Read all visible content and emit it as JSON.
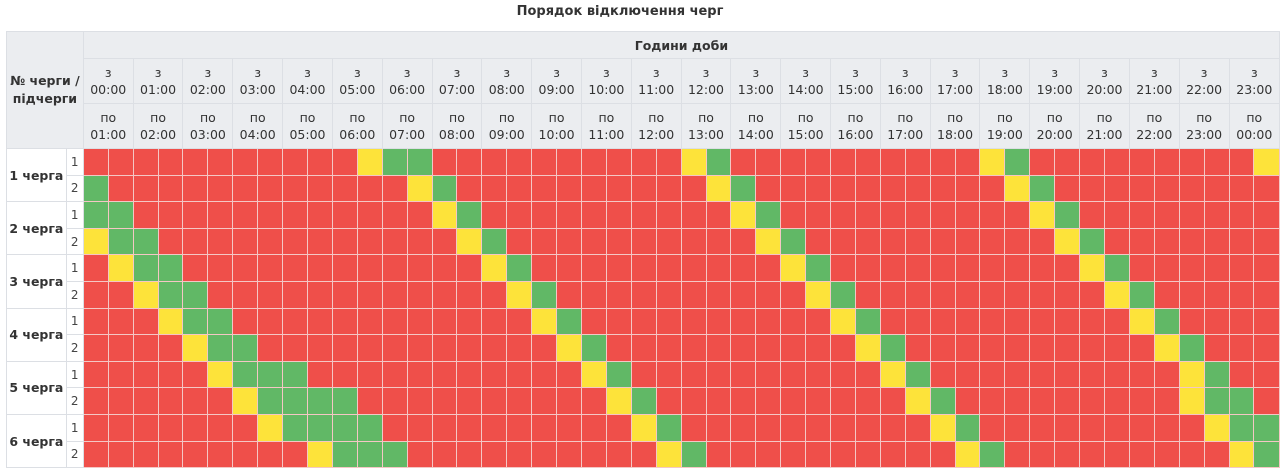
{
  "title": "Порядок відключення черг",
  "header": {
    "corner_label": "№ черги / підчерги",
    "hours_title": "Години доби",
    "from_prefix": "з",
    "to_prefix": "по",
    "from_times": [
      "00:00",
      "01:00",
      "02:00",
      "03:00",
      "04:00",
      "05:00",
      "06:00",
      "07:00",
      "08:00",
      "09:00",
      "10:00",
      "11:00",
      "12:00",
      "13:00",
      "14:00",
      "15:00",
      "16:00",
      "17:00",
      "18:00",
      "19:00",
      "20:00",
      "21:00",
      "22:00",
      "23:00"
    ],
    "to_times": [
      "01:00",
      "02:00",
      "03:00",
      "04:00",
      "05:00",
      "06:00",
      "07:00",
      "08:00",
      "09:00",
      "10:00",
      "11:00",
      "12:00",
      "13:00",
      "14:00",
      "15:00",
      "16:00",
      "17:00",
      "18:00",
      "19:00",
      "20:00",
      "21:00",
      "22:00",
      "23:00",
      "00:00"
    ]
  },
  "colors": {
    "R": "#ef4f4a",
    "Y": "#fde33a",
    "G": "#61b866",
    "header_bg": "#ebedf0"
  },
  "chart_data": {
    "type": "heatmap",
    "title": "Порядок відключення черг",
    "xlabel": "Години доби",
    "ylabel": "№ черги / підчерги",
    "x": [
      "00:00",
      "00:30",
      "01:00",
      "01:30",
      "02:00",
      "02:30",
      "03:00",
      "03:30",
      "04:00",
      "04:30",
      "05:00",
      "05:30",
      "06:00",
      "06:30",
      "07:00",
      "07:30",
      "08:00",
      "08:30",
      "09:00",
      "09:30",
      "10:00",
      "10:30",
      "11:00",
      "11:30",
      "12:00",
      "12:30",
      "13:00",
      "13:30",
      "14:00",
      "14:30",
      "15:00",
      "15:30",
      "16:00",
      "16:30",
      "17:00",
      "17:30",
      "18:00",
      "18:30",
      "19:00",
      "19:30",
      "20:00",
      "20:30",
      "21:00",
      "21:30",
      "22:00",
      "22:30",
      "23:00",
      "23:30"
    ],
    "legend": {
      "R": "red",
      "Y": "yellow",
      "G": "green"
    },
    "groups": [
      {
        "label": "1 черга",
        "rows": [
          {
            "sub": "1",
            "cells": "RRRRRRRRRRRYGGRRRRRRRRRRYGRRRRRRRRRRYGRRRRRRRRRY"
          },
          {
            "sub": "2",
            "cells": "GRRRRRRRRRRRRYGRRRRRRRRRRYGRRRRRRRRRRYGRRRRRRRRR"
          }
        ]
      },
      {
        "label": "2 черга",
        "rows": [
          {
            "sub": "1",
            "cells": "GGRRRRRRRRRRRRYGRRRRRRRRRRYGRRRRRRRRRRYGRRRRRRRR"
          },
          {
            "sub": "2",
            "cells": "YGGRRRRRRRRRRRRYGRRRRRRRRRRYGRRRRRRRRRRYGRRRRRRR"
          }
        ]
      },
      {
        "label": "3 черга",
        "rows": [
          {
            "sub": "1",
            "cells": "RYGGRRRRRRRRRRRRYGRRRRRRRRRRYGRRRRRRRRRRYGRRRRRR"
          },
          {
            "sub": "2",
            "cells": "RRYGGRRRRRRRRRRRRYGRRRRRRRRRRYGRRRRRRRRRRYGRRRRR"
          }
        ]
      },
      {
        "label": "4 черга",
        "rows": [
          {
            "sub": "1",
            "cells": "RRRYGGRRRRRRRRRRRRYGRRRRRRRRRRYGRRRRRRRRRRYGRRRR"
          },
          {
            "sub": "2",
            "cells": "RRRRYGGRRRRRRRRRRRRYGRRRRRRRRRRYGRRRRRRRRRRYGRRR"
          }
        ]
      },
      {
        "label": "5 черга",
        "rows": [
          {
            "sub": "1",
            "cells": "RRRRRYGGGRRRRRRRRRRRYGRRRRRRRRRRYGRRRRRRRRRRYGRR"
          },
          {
            "sub": "2",
            "cells": "RRRRRRYGGGGRRRRRRRRRRYGRRRRRRRRRRYGRRRRRRRRRYGGR"
          }
        ]
      },
      {
        "label": "6 черга",
        "rows": [
          {
            "sub": "1",
            "cells": "RRRRRRRYGGGGRRRRRRRRRRYGRRRRRRRRRRYGRRRRRRRRRYGG"
          },
          {
            "sub": "2",
            "cells": "RRRRRRRRRYGGGRRRRRRRRRRYGRRRRRRRRRRYGRRRRRRRRRYG"
          }
        ]
      }
    ]
  }
}
